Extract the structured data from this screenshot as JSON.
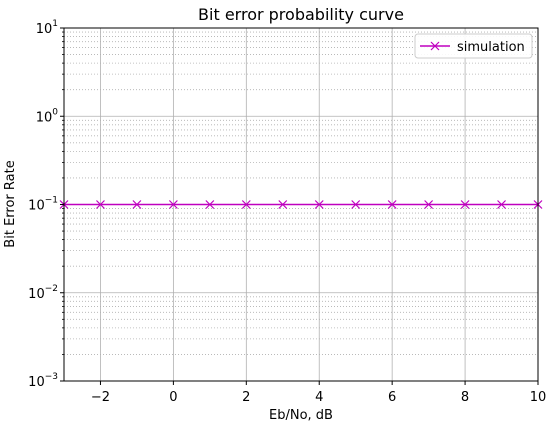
{
  "chart_data": {
    "type": "line",
    "title": "Bit error probability curve",
    "xlabel": "Eb/No, dB",
    "ylabel": "Bit Error Rate",
    "xlim": [
      -3,
      10
    ],
    "ylim": [
      0.001,
      10
    ],
    "yscale": "log",
    "x_ticks": [
      -2,
      0,
      2,
      4,
      6,
      8,
      10
    ],
    "x_tick_labels": [
      "−2",
      "0",
      "2",
      "4",
      "6",
      "8",
      "10"
    ],
    "y_ticks": [
      0.001,
      0.01,
      0.1,
      1,
      10
    ],
    "y_tick_labels": [
      {
        "base": "10",
        "exp": "−3"
      },
      {
        "base": "10",
        "exp": "−2"
      },
      {
        "base": "10",
        "exp": "−1"
      },
      {
        "base": "10",
        "exp": "0"
      },
      {
        "base": "10",
        "exp": "1"
      }
    ],
    "grid": {
      "major": true,
      "minor_y": true
    },
    "legend": {
      "position": "top-right"
    },
    "series": [
      {
        "name": "simulation",
        "color": "#bf00bf",
        "marker": "x",
        "x": [
          -3,
          -2,
          -1,
          0,
          1,
          2,
          3,
          4,
          5,
          6,
          7,
          8,
          9,
          10
        ],
        "y": [
          0.1,
          0.1,
          0.1,
          0.1,
          0.1,
          0.1,
          0.1,
          0.1,
          0.1,
          0.1,
          0.1,
          0.1,
          0.1,
          0.1
        ]
      }
    ]
  }
}
